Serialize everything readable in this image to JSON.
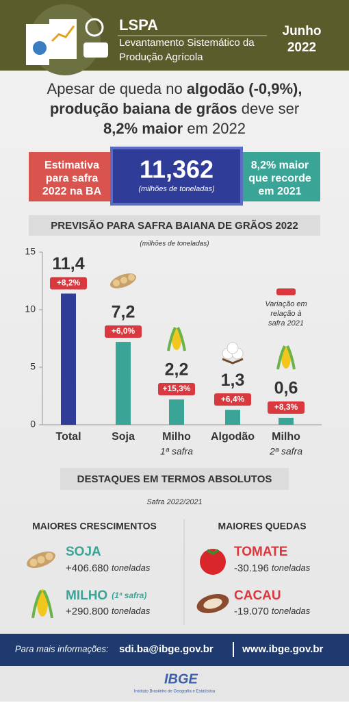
{
  "header": {
    "acronym": "LSPA",
    "name_line1": "Levantamento Sistemático da",
    "name_line2": "Produção Agrícola",
    "month": "Junho",
    "year": "2022"
  },
  "headline": {
    "line1": [
      {
        "text": "Apesar de queda no ",
        "bold": false
      },
      {
        "text": "algodão (-0,9%),",
        "bold": true
      }
    ],
    "line2": [
      {
        "text": "produção baiana de grãos",
        "bold": true
      },
      {
        "text": " deve ser",
        "bold": false
      }
    ],
    "line3": [
      {
        "text": "8,2% maior",
        "bold": true
      },
      {
        "text": " em 2022",
        "bold": false
      }
    ]
  },
  "banner": {
    "left": [
      "Estimativa",
      "para safra",
      "2022 na BA"
    ],
    "value": "11,362",
    "unit": "(milhões de toneladas)",
    "right": [
      "8,2% maior",
      "que recorde",
      "em 2021"
    ]
  },
  "chart_data": {
    "type": "bar",
    "title": "PREVISÃO PARA SAFRA BAIANA DE GRÃOS 2022",
    "subtitle": "(milhões de toneladas)",
    "categories": [
      "Total",
      "Soja",
      "Milho",
      "Algodão",
      "Milho"
    ],
    "category_notes": [
      null,
      null,
      "1ª safra",
      null,
      "2ª safra"
    ],
    "values": [
      11.4,
      7.2,
      2.2,
      1.3,
      0.6
    ],
    "value_labels": [
      "11,4",
      "7,2",
      "2,2",
      "1,3",
      "0,6"
    ],
    "change_labels": [
      "+8,2%",
      "+6,0%",
      "+15,3%",
      "+6,4%",
      "+8,3%"
    ],
    "colors": [
      "#2f3c98",
      "#3aa596",
      "#3aa596",
      "#3aa596",
      "#3aa596"
    ],
    "change_color": "#d9383f",
    "legend_note": [
      "Variação em",
      "relação à",
      "safra 2021"
    ],
    "ylim": [
      0,
      15
    ],
    "yticks": [
      0,
      5,
      10,
      15
    ],
    "grid": false
  },
  "highlights": {
    "title": "DESTAQUES EM TERMOS ABSOLUTOS",
    "subtitle": "Safra 2022/2021",
    "growth": {
      "heading": "MAIORES CRESCIMENTOS",
      "items": [
        {
          "name": "SOJA",
          "note": null,
          "value": "+406.680",
          "unit": "toneladas"
        },
        {
          "name": "MILHO",
          "note": "(1ª safra)",
          "value": "+290.800",
          "unit": "toneladas"
        }
      ]
    },
    "drops": {
      "heading": "MAIORES QUEDAS",
      "items": [
        {
          "name": "TOMATE",
          "note": null,
          "value": "-30.196",
          "unit": "toneladas"
        },
        {
          "name": "CACAU",
          "note": null,
          "value": "-19.070",
          "unit": "toneladas"
        }
      ]
    }
  },
  "footer": {
    "label": "Para mais informações:",
    "email": "sdi.ba@ibge.gov.br",
    "site": "www.ibge.gov.br",
    "logo": "IBGE",
    "institute": "Instituto Brasileiro de Geografia e Estatística"
  }
}
